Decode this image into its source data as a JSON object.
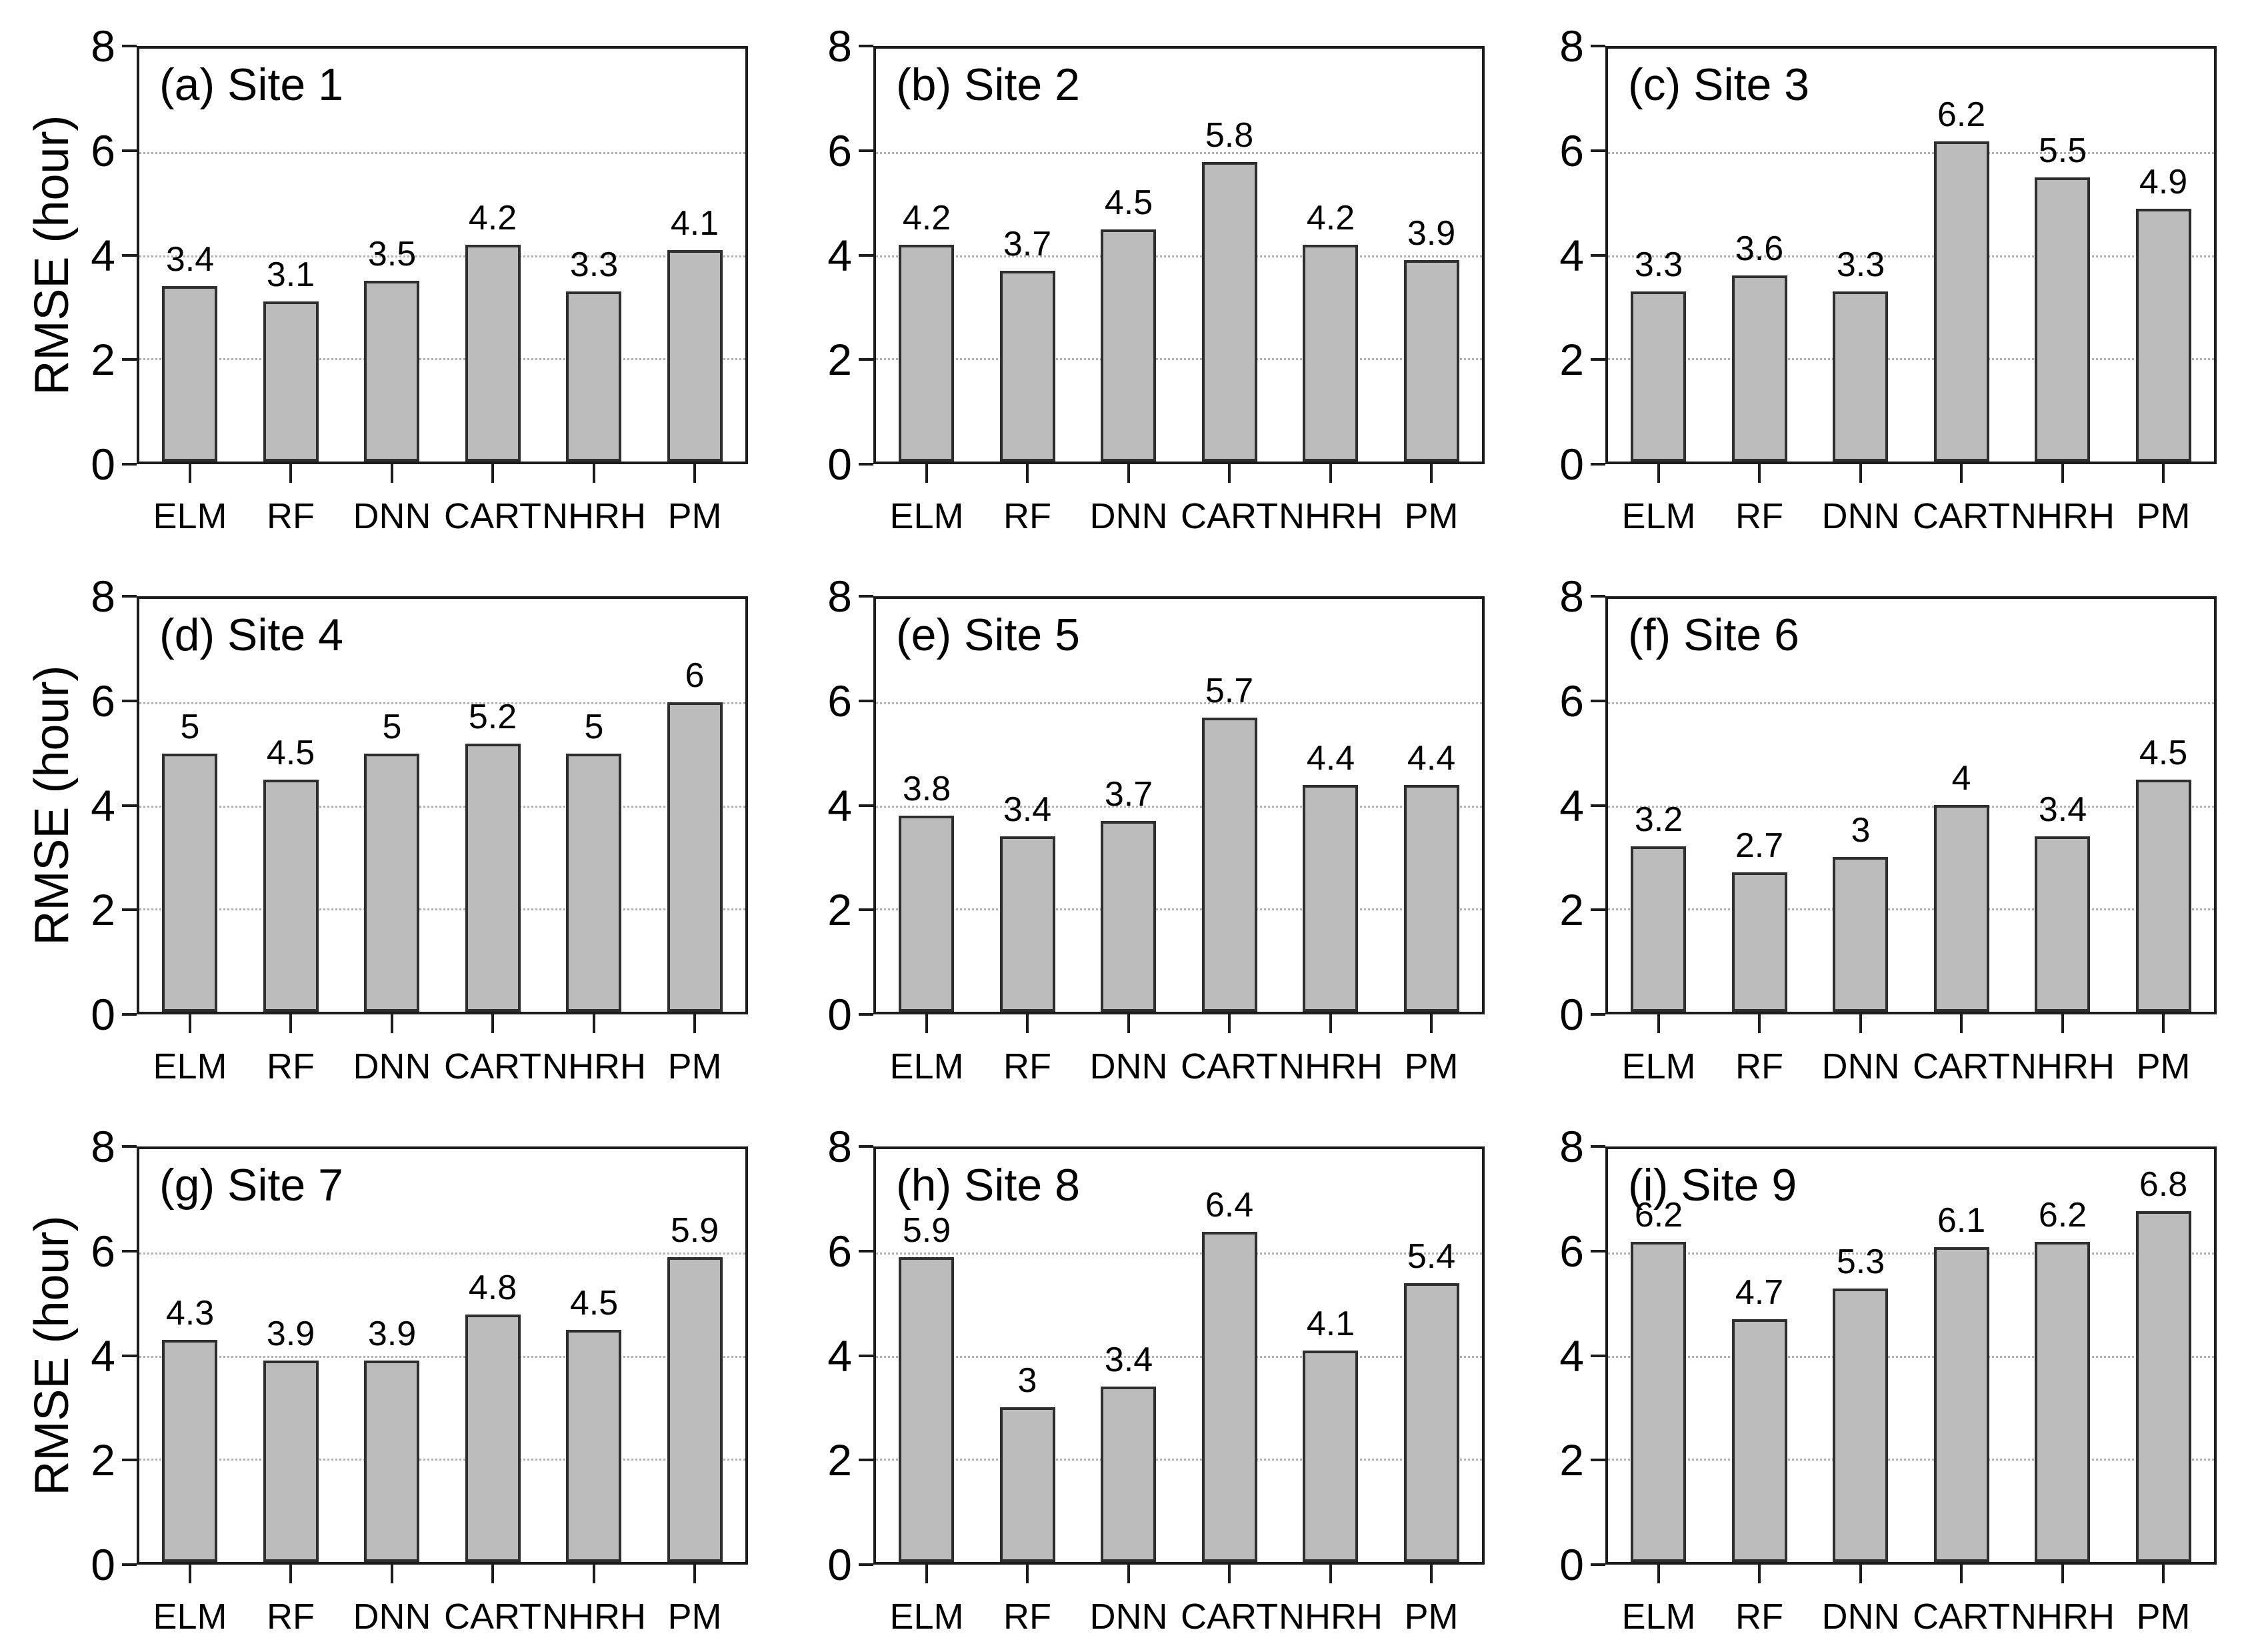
{
  "figure": {
    "ylabel": "RMSE (hour)"
  },
  "axis": {
    "ylim": [
      0,
      8
    ],
    "yticks": [
      0,
      2,
      4,
      6,
      8
    ],
    "gridlines": [
      2,
      4,
      6
    ],
    "grid_style": "dotted",
    "legend": "none"
  },
  "categories": [
    "ELM",
    "RF",
    "DNN",
    "CART",
    "NHRH",
    "PM"
  ],
  "colors": {
    "bar_fill": "#bcbcbc",
    "bar_edge": "#2e2e2e",
    "grid": "#b0b0b0",
    "axis": "#1c1c1c",
    "text": "#000000",
    "background": "#ffffff"
  },
  "chart_data": [
    {
      "type": "bar",
      "title": "(a) Site 1",
      "site": "Site 1",
      "ylabel": "RMSE (hour)",
      "ylim": [
        0,
        8
      ],
      "categories": [
        "ELM",
        "RF",
        "DNN",
        "CART",
        "NHRH",
        "PM"
      ],
      "values": [
        3.4,
        3.1,
        3.5,
        4.2,
        3.3,
        4.1
      ]
    },
    {
      "type": "bar",
      "title": "(b) Site 2",
      "site": "Site 2",
      "ylabel": "RMSE (hour)",
      "ylim": [
        0,
        8
      ],
      "categories": [
        "ELM",
        "RF",
        "DNN",
        "CART",
        "NHRH",
        "PM"
      ],
      "values": [
        4.2,
        3.7,
        4.5,
        5.8,
        4.2,
        3.9
      ]
    },
    {
      "type": "bar",
      "title": "(c) Site 3",
      "site": "Site 3",
      "ylabel": "RMSE (hour)",
      "ylim": [
        0,
        8
      ],
      "categories": [
        "ELM",
        "RF",
        "DNN",
        "CART",
        "NHRH",
        "PM"
      ],
      "values": [
        3.3,
        3.6,
        3.3,
        6.2,
        5.5,
        4.9
      ]
    },
    {
      "type": "bar",
      "title": "(d) Site 4",
      "site": "Site 4",
      "ylabel": "RMSE (hour)",
      "ylim": [
        0,
        8
      ],
      "categories": [
        "ELM",
        "RF",
        "DNN",
        "CART",
        "NHRH",
        "PM"
      ],
      "values": [
        5,
        4.5,
        5,
        5.2,
        5,
        6
      ]
    },
    {
      "type": "bar",
      "title": "(e) Site 5",
      "site": "Site 5",
      "ylabel": "RMSE (hour)",
      "ylim": [
        0,
        8
      ],
      "categories": [
        "ELM",
        "RF",
        "DNN",
        "CART",
        "NHRH",
        "PM"
      ],
      "values": [
        3.8,
        3.4,
        3.7,
        5.7,
        4.4,
        4.4
      ]
    },
    {
      "type": "bar",
      "title": "(f) Site 6",
      "site": "Site 6",
      "ylabel": "RMSE (hour)",
      "ylim": [
        0,
        8
      ],
      "categories": [
        "ELM",
        "RF",
        "DNN",
        "CART",
        "NHRH",
        "PM"
      ],
      "values": [
        3.2,
        2.7,
        3,
        4,
        3.4,
        4.5
      ]
    },
    {
      "type": "bar",
      "title": "(g) Site 7",
      "site": "Site 7",
      "ylabel": "RMSE (hour)",
      "ylim": [
        0,
        8
      ],
      "categories": [
        "ELM",
        "RF",
        "DNN",
        "CART",
        "NHRH",
        "PM"
      ],
      "values": [
        4.3,
        3.9,
        3.9,
        4.8,
        4.5,
        5.9
      ]
    },
    {
      "type": "bar",
      "title": "(h) Site 8",
      "site": "Site 8",
      "ylabel": "RMSE (hour)",
      "ylim": [
        0,
        8
      ],
      "categories": [
        "ELM",
        "RF",
        "DNN",
        "CART",
        "NHRH",
        "PM"
      ],
      "values": [
        5.9,
        3,
        3.4,
        6.4,
        4.1,
        5.4
      ]
    },
    {
      "type": "bar",
      "title": "(i) Site 9",
      "site": "Site 9",
      "ylabel": "RMSE (hour)",
      "ylim": [
        0,
        8
      ],
      "categories": [
        "ELM",
        "RF",
        "DNN",
        "CART",
        "NHRH",
        "PM"
      ],
      "values": [
        6.2,
        4.7,
        5.3,
        6.1,
        6.2,
        6.8
      ]
    }
  ]
}
